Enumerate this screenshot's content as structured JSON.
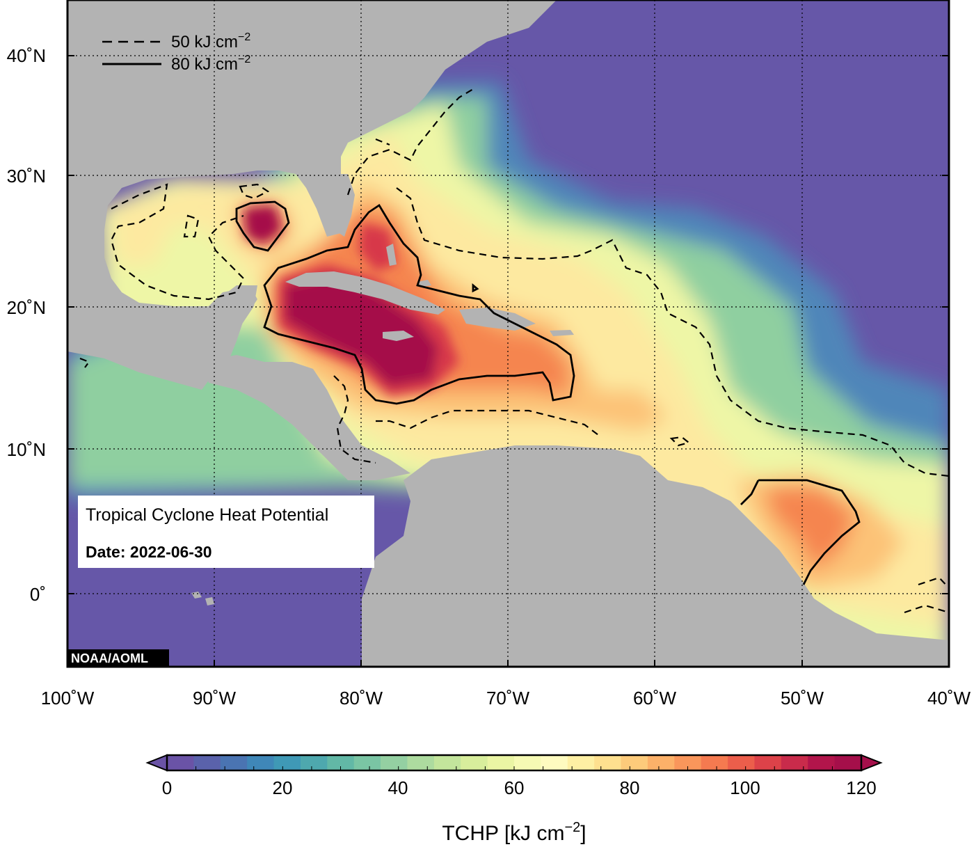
{
  "map": {
    "title": "Tropical Cyclone Heat Potential",
    "date_label": "Date: 2022-06-30",
    "credit": "NOAA/AOML",
    "region": "Atlantic Ocean, Gulf of Mexico and Caribbean Sea",
    "lon_ticks": [
      "100˚W",
      "90˚W",
      "80˚W",
      "70˚W",
      "60˚W",
      "50˚W",
      "40˚W"
    ],
    "lat_ticks": [
      "40˚N",
      "30˚N",
      "20˚N",
      "10˚N",
      "0˚"
    ],
    "legend": {
      "dashed": {
        "value": "50",
        "unit": "kJ cm",
        "exp": "−2"
      },
      "solid": {
        "value": "80",
        "unit": "kJ cm",
        "exp": "−2"
      }
    },
    "colors": {
      "land": "#b3b3b3",
      "low": "#6657a8",
      "high": "#a50f4a"
    }
  },
  "colorbar": {
    "ticks": [
      "0",
      "20",
      "40",
      "60",
      "80",
      "100",
      "120"
    ],
    "title_main": "TCHP [kJ cm",
    "title_exp": "−2",
    "title_end": "]",
    "colors": [
      "#6a53a6",
      "#5a62ab",
      "#4a74b2",
      "#3f87b8",
      "#3f99b6",
      "#4ea8ae",
      "#62b8a6",
      "#7ac5a4",
      "#94d0a2",
      "#addb9f",
      "#c3e59c",
      "#d8ee9c",
      "#eaf5a4",
      "#f6fab4",
      "#fefbc0",
      "#fef0a4",
      "#fee08f",
      "#fdcb7b",
      "#fcb169",
      "#f9965b",
      "#f57a50",
      "#ec5e4b",
      "#dd4249",
      "#c92b4b",
      "#b2154b",
      "#a50f4a"
    ]
  }
}
